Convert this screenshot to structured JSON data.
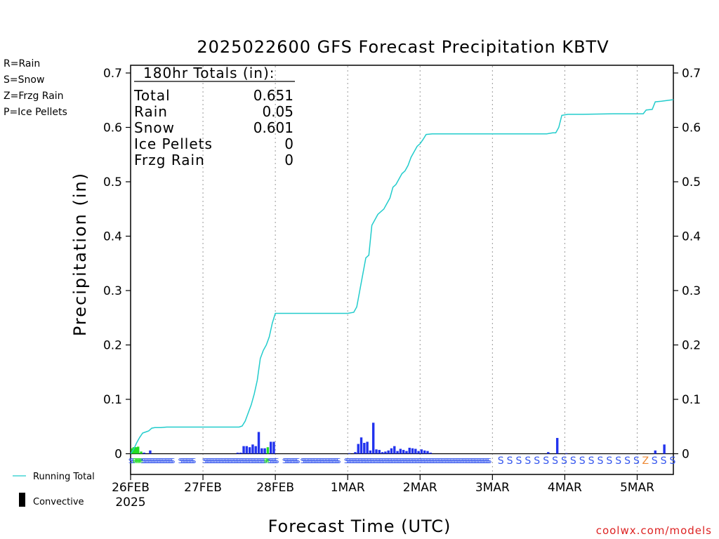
{
  "chart_data": {
    "type": "bar",
    "title": "2025022600 GFS Forecast Precipitation KBTV",
    "xlabel": "Forecast Time (UTC)",
    "ylabel": "Precipitation (in)",
    "ylim": [
      0,
      0.72
    ],
    "y_ticks": [
      0,
      0.1,
      0.2,
      0.3,
      0.4,
      0.5,
      0.6,
      0.7
    ],
    "y_tick_labels": [
      "0",
      "0.1",
      "0.2",
      "0.3",
      "0.4",
      "0.5",
      "0.6",
      "0.7"
    ],
    "x_range_hours": [
      0,
      180
    ],
    "x_ticks": [
      {
        "hour": 0,
        "label": "26FEB",
        "sublabel": "2025"
      },
      {
        "hour": 24,
        "label": "27FEB"
      },
      {
        "hour": 48,
        "label": "28FEB"
      },
      {
        "hour": 72,
        "label": "1MAR"
      },
      {
        "hour": 96,
        "label": "2MAR"
      },
      {
        "hour": 120,
        "label": "3MAR"
      },
      {
        "hour": 144,
        "label": "4MAR"
      },
      {
        "hour": 168,
        "label": "5MAR"
      }
    ],
    "grid": "vertical dotted",
    "totals_box": {
      "heading": "180hr Totals (in):",
      "rows": [
        {
          "label": "Total",
          "value": "0.651"
        },
        {
          "label": "Rain",
          "value": "0.05"
        },
        {
          "label": "Snow",
          "value": "0.601"
        },
        {
          "label": "Ice Pellets",
          "value": "0"
        },
        {
          "label": "Frzg Rain",
          "value": "0"
        }
      ]
    },
    "ptype_legend": [
      {
        "label": "R=Rain",
        "color": "#22dd22"
      },
      {
        "label": "S=Snow",
        "color": "#3355ee"
      },
      {
        "label": "Z=Frzg Rain",
        "color": "#ee8833"
      },
      {
        "label": "P=Ice Pellets",
        "color": "#ee1188"
      }
    ],
    "line_legend": {
      "running_total_label": "Running Total",
      "convective_label": "Convective"
    },
    "credit": "coolwx.com/models",
    "colors": {
      "running_total": "#22cccc",
      "rain": "#22dd22",
      "snow": "#2233ee",
      "frzg": "#ee8833",
      "credit": "#dd2222"
    },
    "series": [
      {
        "name": "Running Total",
        "points": [
          [
            0,
            0
          ],
          [
            1,
            0.008
          ],
          [
            2,
            0.02
          ],
          [
            3,
            0.03
          ],
          [
            4,
            0.038
          ],
          [
            5,
            0.04
          ],
          [
            6,
            0.042
          ],
          [
            7,
            0.047
          ],
          [
            8,
            0.048
          ],
          [
            10,
            0.048
          ],
          [
            12,
            0.049
          ],
          [
            24,
            0.049
          ],
          [
            36,
            0.049
          ],
          [
            37,
            0.051
          ],
          [
            38,
            0.06
          ],
          [
            39,
            0.075
          ],
          [
            40,
            0.09
          ],
          [
            41,
            0.11
          ],
          [
            42,
            0.135
          ],
          [
            43,
            0.175
          ],
          [
            44,
            0.19
          ],
          [
            45,
            0.2
          ],
          [
            46,
            0.215
          ],
          [
            47,
            0.24
          ],
          [
            48,
            0.258
          ],
          [
            60,
            0.258
          ],
          [
            70,
            0.258
          ],
          [
            72,
            0.258
          ],
          [
            74,
            0.26
          ],
          [
            75,
            0.27
          ],
          [
            76,
            0.3
          ],
          [
            77,
            0.33
          ],
          [
            78,
            0.36
          ],
          [
            79,
            0.365
          ],
          [
            80,
            0.42
          ],
          [
            81,
            0.43
          ],
          [
            82,
            0.44
          ],
          [
            84,
            0.45
          ],
          [
            85,
            0.46
          ],
          [
            86,
            0.47
          ],
          [
            87,
            0.49
          ],
          [
            88,
            0.495
          ],
          [
            89,
            0.505
          ],
          [
            90,
            0.515
          ],
          [
            91,
            0.52
          ],
          [
            92,
            0.53
          ],
          [
            93,
            0.545
          ],
          [
            94,
            0.555
          ],
          [
            95,
            0.565
          ],
          [
            96,
            0.57
          ],
          [
            97,
            0.578
          ],
          [
            98,
            0.587
          ],
          [
            100,
            0.588
          ],
          [
            110,
            0.588
          ],
          [
            120,
            0.588
          ],
          [
            138,
            0.588
          ],
          [
            140,
            0.59
          ],
          [
            141,
            0.59
          ],
          [
            142,
            0.6
          ],
          [
            143,
            0.622
          ],
          [
            145,
            0.624
          ],
          [
            150,
            0.624
          ],
          [
            160,
            0.625
          ],
          [
            168,
            0.625
          ],
          [
            170,
            0.625
          ],
          [
            171,
            0.632
          ],
          [
            173,
            0.633
          ],
          [
            174,
            0.647
          ],
          [
            176,
            0.648
          ],
          [
            180,
            0.651
          ]
        ]
      }
    ],
    "bars": [
      {
        "hour": 0.5,
        "value": 0.01,
        "ptype": "R"
      },
      {
        "hour": 1.0,
        "value": 0.012,
        "ptype": "R"
      },
      {
        "hour": 1.5,
        "value": 0.012,
        "ptype": "R"
      },
      {
        "hour": 2.0,
        "value": 0.012,
        "ptype": "R"
      },
      {
        "hour": 2.5,
        "value": 0.013,
        "ptype": "R"
      },
      {
        "hour": 3.5,
        "value": 0.004,
        "ptype": "R"
      },
      {
        "hour": 4.5,
        "value": 0.002,
        "ptype": "S"
      },
      {
        "hour": 6.5,
        "value": 0.006,
        "ptype": "S"
      },
      {
        "hour": 35.5,
        "value": 0.002,
        "ptype": "S"
      },
      {
        "hour": 36.5,
        "value": 0.002,
        "ptype": "S"
      },
      {
        "hour": 37.5,
        "value": 0.014,
        "ptype": "S"
      },
      {
        "hour": 38.5,
        "value": 0.014,
        "ptype": "S"
      },
      {
        "hour": 39.5,
        "value": 0.012,
        "ptype": "S"
      },
      {
        "hour": 40.5,
        "value": 0.017,
        "ptype": "S"
      },
      {
        "hour": 41.5,
        "value": 0.014,
        "ptype": "S"
      },
      {
        "hour": 42.5,
        "value": 0.04,
        "ptype": "S"
      },
      {
        "hour": 43.5,
        "value": 0.01,
        "ptype": "S"
      },
      {
        "hour": 44.5,
        "value": 0.01,
        "ptype": "S"
      },
      {
        "hour": 45.5,
        "value": 0.012,
        "ptype": "R"
      },
      {
        "hour": 46.5,
        "value": 0.022,
        "ptype": "S"
      },
      {
        "hour": 47.5,
        "value": 0.022,
        "ptype": "S"
      },
      {
        "hour": 72.5,
        "value": 0.001,
        "ptype": "S"
      },
      {
        "hour": 74.5,
        "value": 0.003,
        "ptype": "S"
      },
      {
        "hour": 75.5,
        "value": 0.018,
        "ptype": "S"
      },
      {
        "hour": 76.5,
        "value": 0.03,
        "ptype": "S"
      },
      {
        "hour": 77.5,
        "value": 0.02,
        "ptype": "S"
      },
      {
        "hour": 78.5,
        "value": 0.022,
        "ptype": "S"
      },
      {
        "hour": 79.5,
        "value": 0.006,
        "ptype": "S"
      },
      {
        "hour": 80.5,
        "value": 0.057,
        "ptype": "S"
      },
      {
        "hour": 81.5,
        "value": 0.008,
        "ptype": "S"
      },
      {
        "hour": 82.5,
        "value": 0.007,
        "ptype": "S"
      },
      {
        "hour": 83.5,
        "value": 0.003,
        "ptype": "S"
      },
      {
        "hour": 84.5,
        "value": 0.004,
        "ptype": "S"
      },
      {
        "hour": 85.5,
        "value": 0.006,
        "ptype": "S"
      },
      {
        "hour": 86.5,
        "value": 0.01,
        "ptype": "S"
      },
      {
        "hour": 87.5,
        "value": 0.014,
        "ptype": "S"
      },
      {
        "hour": 88.5,
        "value": 0.005,
        "ptype": "S"
      },
      {
        "hour": 89.5,
        "value": 0.009,
        "ptype": "S"
      },
      {
        "hour": 90.5,
        "value": 0.007,
        "ptype": "S"
      },
      {
        "hour": 91.5,
        "value": 0.005,
        "ptype": "S"
      },
      {
        "hour": 92.5,
        "value": 0.011,
        "ptype": "S"
      },
      {
        "hour": 93.5,
        "value": 0.01,
        "ptype": "S"
      },
      {
        "hour": 94.5,
        "value": 0.009,
        "ptype": "S"
      },
      {
        "hour": 95.5,
        "value": 0.005,
        "ptype": "S"
      },
      {
        "hour": 96.5,
        "value": 0.008,
        "ptype": "S"
      },
      {
        "hour": 97.5,
        "value": 0.006,
        "ptype": "S"
      },
      {
        "hour": 98.5,
        "value": 0.005,
        "ptype": "S"
      },
      {
        "hour": 99.5,
        "value": 0.002,
        "ptype": "S"
      },
      {
        "hour": 138.5,
        "value": 0.003,
        "ptype": "S"
      },
      {
        "hour": 141.5,
        "value": 0.029,
        "ptype": "S"
      },
      {
        "hour": 144.5,
        "value": 0.001,
        "ptype": "S"
      },
      {
        "hour": 174.0,
        "value": 0.006,
        "ptype": "S"
      },
      {
        "hour": 177.0,
        "value": 0.017,
        "ptype": "S"
      }
    ],
    "ptype_markers": {
      "dense": [
        {
          "from": 0,
          "to": 1.5,
          "ptype": "S"
        },
        {
          "from": 1.5,
          "to": 4.0,
          "ptype": "R"
        },
        {
          "from": 4.0,
          "to": 14.5,
          "ptype": "S"
        },
        {
          "from": 16.5,
          "to": 21.5,
          "ptype": "S"
        },
        {
          "from": 24.5,
          "to": 45.0,
          "ptype": "S"
        },
        {
          "from": 45.0,
          "to": 46.0,
          "ptype": "R"
        },
        {
          "from": 46.0,
          "to": 49.0,
          "ptype": "S"
        },
        {
          "from": 51.0,
          "to": 56.0,
          "ptype": "S"
        },
        {
          "from": 57.0,
          "to": 69.5,
          "ptype": "S"
        },
        {
          "from": 71.5,
          "to": 119.5,
          "ptype": "S"
        }
      ],
      "sparse": [
        {
          "hour": 123,
          "ptype": "S"
        },
        {
          "hour": 126,
          "ptype": "S"
        },
        {
          "hour": 129,
          "ptype": "S"
        },
        {
          "hour": 132,
          "ptype": "S"
        },
        {
          "hour": 135,
          "ptype": "S"
        },
        {
          "hour": 138,
          "ptype": "S"
        },
        {
          "hour": 141,
          "ptype": "S"
        },
        {
          "hour": 144,
          "ptype": "S"
        },
        {
          "hour": 147,
          "ptype": "S"
        },
        {
          "hour": 150,
          "ptype": "S"
        },
        {
          "hour": 153,
          "ptype": "S"
        },
        {
          "hour": 156,
          "ptype": "S"
        },
        {
          "hour": 159,
          "ptype": "S"
        },
        {
          "hour": 162,
          "ptype": "S"
        },
        {
          "hour": 165,
          "ptype": "S"
        },
        {
          "hour": 168,
          "ptype": "S"
        },
        {
          "hour": 171,
          "ptype": "Z"
        },
        {
          "hour": 174,
          "ptype": "S"
        },
        {
          "hour": 177,
          "ptype": "S"
        },
        {
          "hour": 180,
          "ptype": "S"
        }
      ]
    }
  }
}
